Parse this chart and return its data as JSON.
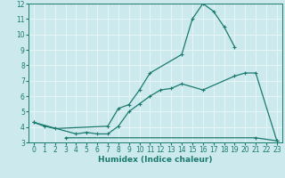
{
  "xlabel": "Humidex (Indice chaleur)",
  "xlim": [
    -0.5,
    23.5
  ],
  "ylim": [
    3,
    12
  ],
  "yticks": [
    3,
    4,
    5,
    6,
    7,
    8,
    9,
    10,
    11,
    12
  ],
  "xticks": [
    0,
    1,
    2,
    3,
    4,
    5,
    6,
    7,
    8,
    9,
    10,
    11,
    12,
    13,
    14,
    15,
    16,
    17,
    18,
    19,
    20,
    21,
    22,
    23
  ],
  "bg_color": "#cce9ee",
  "grid_color": "#e8f5f7",
  "line_color": "#1a7a6e",
  "series": [
    {
      "x": [
        0,
        1,
        2,
        7,
        8,
        9,
        10,
        11,
        14,
        15,
        16,
        17,
        18,
        19
      ],
      "y": [
        4.3,
        4.05,
        3.9,
        4.05,
        5.2,
        5.45,
        6.4,
        7.5,
        8.7,
        11.0,
        12.0,
        11.5,
        10.5,
        9.2
      ]
    },
    {
      "x": [
        0,
        4,
        5,
        6,
        7,
        8,
        9,
        10,
        11,
        12,
        13,
        14,
        16,
        19,
        20,
        21,
        23
      ],
      "y": [
        4.3,
        3.55,
        3.65,
        3.55,
        3.55,
        4.05,
        5.0,
        5.5,
        6.0,
        6.4,
        6.5,
        6.8,
        6.4,
        7.3,
        7.5,
        7.5,
        3.1
      ]
    },
    {
      "x": [
        3,
        21,
        23
      ],
      "y": [
        3.3,
        3.3,
        3.1
      ]
    }
  ]
}
